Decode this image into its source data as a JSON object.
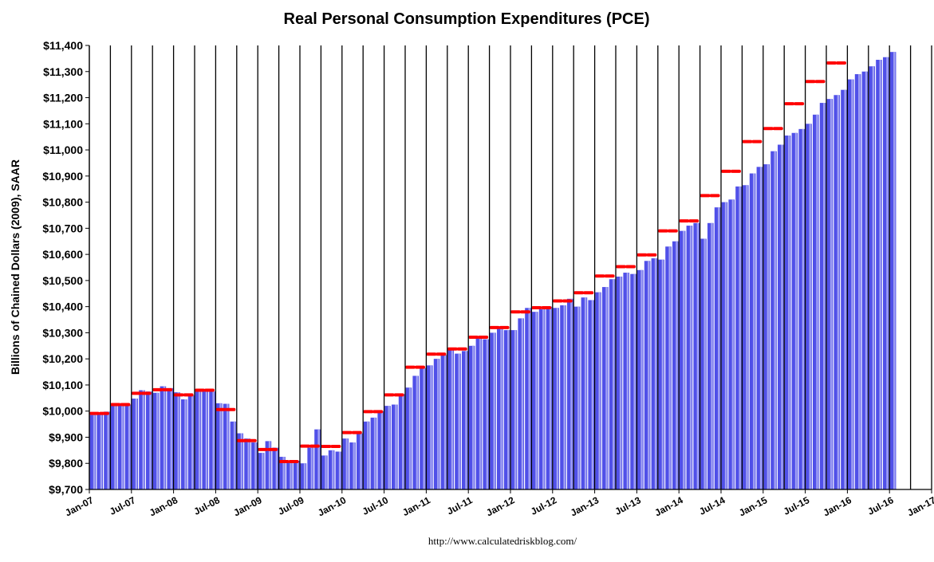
{
  "chart_data": {
    "type": "bar",
    "title": "Real Personal Consumption Expenditures (PCE)",
    "xlabel": "",
    "ylabel": "Billions of Chained Dollars (2009), SAAR",
    "source": "http://www.calculatedriskblog.com/",
    "ylim": [
      9700,
      11400
    ],
    "ytick_step": 100,
    "y_tick_labels": [
      "$9,700",
      "$9,800",
      "$9,900",
      "$10,000",
      "$10,100",
      "$10,200",
      "$10,300",
      "$10,400",
      "$10,500",
      "$10,600",
      "$10,700",
      "$10,800",
      "$10,900",
      "$11,000",
      "$11,100",
      "$11,200",
      "$11,300",
      "$11,400"
    ],
    "x_tick_labels": [
      "Jan-07",
      "Jul-07",
      "Jan-08",
      "Jul-08",
      "Jan-09",
      "Jul-09",
      "Jan-10",
      "Jul-10",
      "Jan-11",
      "Jul-11",
      "Jan-12",
      "Jul-12",
      "Jan-13",
      "Jul-13",
      "Jan-14",
      "Jul-14",
      "Jan-15",
      "Jul-15",
      "Jan-16",
      "Jul-16",
      "Jan-17"
    ],
    "x_start": "Jan-07",
    "n_months": 120,
    "grid": "vertical lines every 3 months",
    "colors": {
      "bar": "#5050e8",
      "bar_highlight": "#a8a8f4",
      "quarter_mark": "#ff0000",
      "grid": "#000000"
    },
    "series": [
      {
        "values": [
          9985,
          9990,
          9998,
          10025,
          10030,
          10025,
          10048,
          10080,
          10075,
          10070,
          10095,
          10088,
          10072,
          10045,
          10060,
          10080,
          10085,
          10075,
          10030,
          10028,
          9960,
          9915,
          9895,
          9880,
          9840,
          9885,
          9860,
          9825,
          9810,
          9810,
          9800,
          9860,
          9930,
          9830,
          9850,
          9845,
          9895,
          9880,
          9915,
          9960,
          9975,
          10000,
          10020,
          10025,
          10065,
          10090,
          10135,
          10165,
          10175,
          10200,
          10215,
          10240,
          10220,
          10230,
          10250,
          10280,
          10275,
          10300,
          10320,
          10310,
          10310,
          10355,
          10395,
          10380,
          10390,
          10400,
          10395,
          10405,
          10430,
          10400,
          10435,
          10425,
          10455,
          10475,
          10505,
          10515,
          10530,
          10525,
          10540,
          10575,
          10585,
          10580,
          10630,
          10650,
          10690,
          10710,
          10720,
          10660,
          10720,
          10780,
          10800,
          10810,
          10860,
          10865,
          10910,
          10935,
          10945,
          10995,
          11020,
          11055,
          11065,
          11080,
          11100,
          11135,
          11180,
          11195,
          11210,
          11230,
          11270,
          11290,
          11300,
          11320,
          11345,
          11355,
          11375
        ]
      },
      {
        "name": "",
        "quarterly_averages": [
          9991,
          10025,
          10068,
          10082,
          10062,
          10080,
          10006,
          9887,
          9853,
          9807,
          9866,
          9865,
          9918,
          9998,
          10062,
          10168,
          10218,
          10238,
          10283,
          10320,
          10380,
          10396,
          10422,
          10453,
          10517,
          10553,
          10598,
          10690,
          10728,
          10825,
          10918,
          11032,
          11082,
          11177,
          11262,
          11333
        ]
      }
    ]
  }
}
